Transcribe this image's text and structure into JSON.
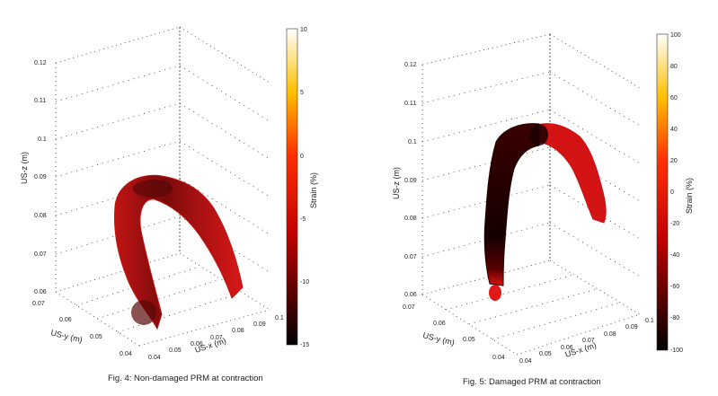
{
  "chart_data": [
    {
      "type": "scatter3d",
      "caption": "Fig. 4: Non-damaged PRM at contraction",
      "xlabel": "US-x (m)",
      "ylabel": "US-y (m)",
      "zlabel": "US-z (m)",
      "x_ticks": [
        "0.04",
        "0.05",
        "0.06",
        "0.07",
        "0.08",
        "0.09",
        "0.1"
      ],
      "y_ticks": [
        "0.07",
        "0.06",
        "0.05",
        "0.04"
      ],
      "z_ticks": [
        "0.12",
        "0.11",
        "0.1",
        "0.09",
        "0.08",
        "0.07",
        "0.06"
      ],
      "zlim": [
        0.06,
        0.12
      ],
      "colorbar": {
        "label": "Strain (%)",
        "range": [
          -15,
          10
        ],
        "ticks": [
          "10",
          "5",
          "0",
          "-5",
          "-10",
          "-15"
        ],
        "colormap": "hot"
      },
      "description_series": "U-shaped point cloud of puborectalis muscle; mostly red (~-5% strain), darker near apex and lower-left end"
    },
    {
      "type": "scatter3d",
      "caption": "Fig. 5: Damaged PRM at contraction",
      "xlabel": "US-x (m)",
      "ylabel": "US-y (m)",
      "zlabel": "US-z (m)",
      "x_ticks": [
        "0.04",
        "0.05",
        "0.06",
        "0.07",
        "0.08",
        "0.09",
        "0.1"
      ],
      "y_ticks": [
        "0.07",
        "0.06",
        "0.05",
        "0.04"
      ],
      "z_ticks": [
        "0.12",
        "0.11",
        "0.1",
        "0.09",
        "0.08",
        "0.07",
        "0.06"
      ],
      "zlim": [
        0.06,
        0.12
      ],
      "colorbar": {
        "label": "Strain (%)",
        "range": [
          -100,
          100
        ],
        "ticks": [
          "100",
          "80",
          "60",
          "40",
          "20",
          "0",
          "-20",
          "-40",
          "-60",
          "-80",
          "-100"
        ],
        "colormap": "hot"
      },
      "description_series": "Arch-shaped point cloud; left limb near black (~-100% strain), right limb red (~-20%)"
    }
  ],
  "colors": {
    "dark": "#1a0000",
    "red": "#d81616",
    "mid": "#8a0c0c"
  }
}
